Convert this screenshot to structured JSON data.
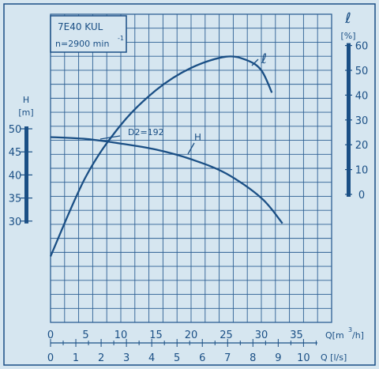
{
  "chart_data": {
    "type": "line",
    "title": "7E40 KUL",
    "subtitle": "n=2900 min",
    "subtitle_sup": "-1",
    "annotation": "D2=192",
    "x_axis_q_m3h": {
      "label": "Q[m",
      "label_sup": "3",
      "label_end": "/h]",
      "ticks": [
        0,
        5,
        10,
        15,
        20,
        25,
        30,
        35
      ],
      "range": [
        0,
        40
      ]
    },
    "x_axis_q_ls": {
      "label": "Q [l/s]",
      "ticks": [
        0,
        1,
        2,
        3,
        4,
        5,
        6,
        7,
        8,
        9,
        10
      ]
    },
    "y_axis_h": {
      "label": "H",
      "unit": "[m]",
      "ticks": [
        30,
        35,
        40,
        45,
        50
      ]
    },
    "y_axis_eta": {
      "label": "ℓ",
      "unit": "[%]",
      "ticks": [
        0,
        10,
        20,
        30,
        40,
        50,
        60
      ]
    },
    "series": [
      {
        "name": "H",
        "axis": "H",
        "x": [
          0,
          5,
          10,
          15,
          20,
          25,
          30,
          33
        ],
        "y": [
          48.2,
          47.8,
          46.8,
          45.5,
          43.4,
          40.3,
          35.0,
          29.5
        ]
      },
      {
        "name": "ℓ",
        "axis": "eta",
        "x": [
          0,
          5,
          10,
          15,
          20,
          25,
          28,
          30,
          31.5
        ],
        "y": [
          -25,
          7,
          28,
          42,
          51,
          55.5,
          54,
          50,
          41
        ]
      }
    ],
    "colors": {
      "background": "#d6e6f0",
      "ink": "#1a4f85",
      "grid": "#2c5f93"
    }
  }
}
